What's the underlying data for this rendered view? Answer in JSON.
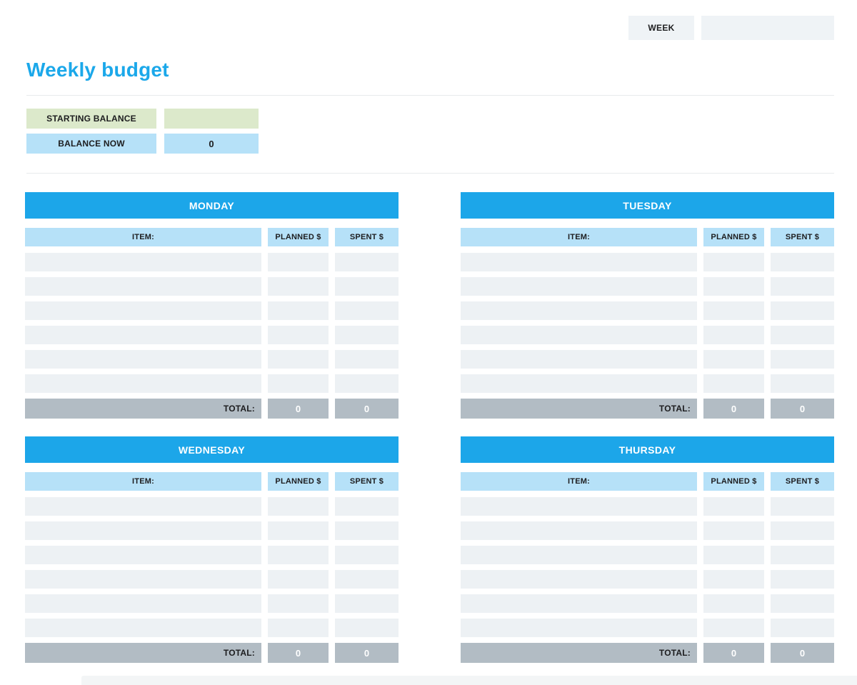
{
  "page": {
    "title": "Weekly budget",
    "week_label": "WEEK",
    "week_value": ""
  },
  "balance": {
    "starting_label": "STARTING BALANCE",
    "starting_value": "",
    "now_label": "BALANCE NOW",
    "now_value": "0"
  },
  "table": {
    "item_header": "ITEM:",
    "planned_header": "PLANNED $",
    "spent_header": "SPENT $",
    "total_label": "TOTAL:",
    "entry_rows_per_day": 6
  },
  "days": [
    {
      "name": "MONDAY",
      "planned_total": "0",
      "spent_total": "0"
    },
    {
      "name": "TUESDAY",
      "planned_total": "0",
      "spent_total": "0"
    },
    {
      "name": "WEDNESDAY",
      "planned_total": "0",
      "spent_total": "0"
    },
    {
      "name": "THURSDAY",
      "planned_total": "0",
      "spent_total": "0"
    }
  ],
  "colors": {
    "accent_blue": "#1ca6e9",
    "title_blue": "#1ba8ea",
    "header_light_blue": "#b6e1f8",
    "balance_green": "#dce9cb",
    "entry_row_gray": "#edf1f4",
    "total_gray": "#b2bcc4",
    "week_box_gray": "#eff3f6",
    "divider_gray": "#e8ebec",
    "bottom_band_gray": "#f3f5f6"
  }
}
